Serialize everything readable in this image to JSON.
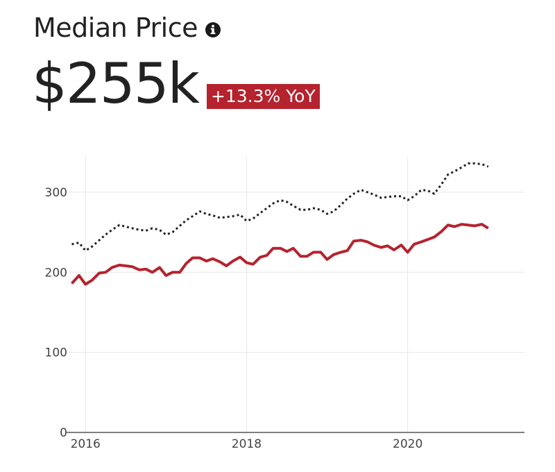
{
  "header": {
    "title": "Median Price",
    "info_icon": "info-circle-icon",
    "value": "$255k",
    "change_badge": "+13.3% YoY"
  },
  "colors": {
    "accent": "#b5232e",
    "compare_line": "#222222",
    "grid": "#e6e6e6",
    "text": "#222222"
  },
  "chart_data": {
    "type": "line",
    "title": "",
    "xlabel": "",
    "ylabel": "",
    "x_range": [
      2015.8,
      2021.45
    ],
    "ylim": [
      0,
      345
    ],
    "x_ticks": [
      2016,
      2018,
      2020
    ],
    "y_ticks": [
      0,
      100,
      200,
      300
    ],
    "grid": true,
    "series": [
      {
        "style": "solid",
        "color": "#b5232e",
        "points": [
          [
            2015.83,
            186
          ],
          [
            2015.92,
            196
          ],
          [
            2016.0,
            185
          ],
          [
            2016.08,
            190
          ],
          [
            2016.17,
            199
          ],
          [
            2016.25,
            200
          ],
          [
            2016.33,
            206
          ],
          [
            2016.42,
            209
          ],
          [
            2016.5,
            208
          ],
          [
            2016.58,
            207
          ],
          [
            2016.67,
            203
          ],
          [
            2016.75,
            204
          ],
          [
            2016.83,
            200
          ],
          [
            2016.92,
            206
          ],
          [
            2017.0,
            196
          ],
          [
            2017.08,
            200
          ],
          [
            2017.17,
            200
          ],
          [
            2017.25,
            211
          ],
          [
            2017.33,
            218
          ],
          [
            2017.42,
            218
          ],
          [
            2017.5,
            214
          ],
          [
            2017.58,
            217
          ],
          [
            2017.67,
            213
          ],
          [
            2017.75,
            208
          ],
          [
            2017.83,
            214
          ],
          [
            2017.92,
            219
          ],
          [
            2018.0,
            212
          ],
          [
            2018.08,
            210
          ],
          [
            2018.17,
            219
          ],
          [
            2018.25,
            221
          ],
          [
            2018.33,
            230
          ],
          [
            2018.42,
            230
          ],
          [
            2018.5,
            226
          ],
          [
            2018.58,
            230
          ],
          [
            2018.67,
            220
          ],
          [
            2018.75,
            220
          ],
          [
            2018.83,
            225
          ],
          [
            2018.92,
            225
          ],
          [
            2019.0,
            216
          ],
          [
            2019.08,
            222
          ],
          [
            2019.17,
            225
          ],
          [
            2019.25,
            227
          ],
          [
            2019.33,
            239
          ],
          [
            2019.42,
            240
          ],
          [
            2019.5,
            238
          ],
          [
            2019.58,
            234
          ],
          [
            2019.67,
            231
          ],
          [
            2019.75,
            233
          ],
          [
            2019.83,
            228
          ],
          [
            2019.92,
            234
          ],
          [
            2020.0,
            225
          ],
          [
            2020.08,
            235
          ],
          [
            2020.17,
            238
          ],
          [
            2020.25,
            241
          ],
          [
            2020.33,
            244
          ],
          [
            2020.42,
            251
          ],
          [
            2020.5,
            259
          ],
          [
            2020.58,
            257
          ],
          [
            2020.67,
            260
          ],
          [
            2020.75,
            259
          ],
          [
            2020.83,
            258
          ],
          [
            2020.92,
            260
          ],
          [
            2021.0,
            255
          ]
        ]
      },
      {
        "style": "dotted",
        "color": "#222222",
        "points": [
          [
            2015.83,
            235
          ],
          [
            2015.92,
            237
          ],
          [
            2016.0,
            227
          ],
          [
            2016.08,
            232
          ],
          [
            2016.17,
            240
          ],
          [
            2016.25,
            247
          ],
          [
            2016.33,
            253
          ],
          [
            2016.42,
            259
          ],
          [
            2016.5,
            257
          ],
          [
            2016.58,
            255
          ],
          [
            2016.67,
            253
          ],
          [
            2016.75,
            252
          ],
          [
            2016.83,
            255
          ],
          [
            2016.92,
            253
          ],
          [
            2017.0,
            247
          ],
          [
            2017.08,
            250
          ],
          [
            2017.17,
            258
          ],
          [
            2017.25,
            265
          ],
          [
            2017.33,
            270
          ],
          [
            2017.42,
            276
          ],
          [
            2017.5,
            273
          ],
          [
            2017.58,
            271
          ],
          [
            2017.67,
            268
          ],
          [
            2017.75,
            269
          ],
          [
            2017.83,
            270
          ],
          [
            2017.92,
            272
          ],
          [
            2018.0,
            264
          ],
          [
            2018.08,
            267
          ],
          [
            2018.17,
            274
          ],
          [
            2018.25,
            280
          ],
          [
            2018.33,
            286
          ],
          [
            2018.42,
            290
          ],
          [
            2018.5,
            288
          ],
          [
            2018.58,
            283
          ],
          [
            2018.67,
            278
          ],
          [
            2018.75,
            278
          ],
          [
            2018.83,
            280
          ],
          [
            2018.92,
            278
          ],
          [
            2019.0,
            273
          ],
          [
            2019.08,
            276
          ],
          [
            2019.17,
            284
          ],
          [
            2019.25,
            292
          ],
          [
            2019.33,
            298
          ],
          [
            2019.42,
            303
          ],
          [
            2019.5,
            300
          ],
          [
            2019.58,
            297
          ],
          [
            2019.67,
            293
          ],
          [
            2019.75,
            294
          ],
          [
            2019.83,
            295
          ],
          [
            2019.92,
            295
          ],
          [
            2020.0,
            290
          ],
          [
            2020.08,
            295
          ],
          [
            2020.17,
            303
          ],
          [
            2020.25,
            302
          ],
          [
            2020.33,
            298
          ],
          [
            2020.42,
            310
          ],
          [
            2020.5,
            322
          ],
          [
            2020.58,
            326
          ],
          [
            2020.67,
            331
          ],
          [
            2020.75,
            336
          ],
          [
            2020.83,
            336
          ],
          [
            2020.92,
            335
          ],
          [
            2021.0,
            332
          ]
        ]
      }
    ]
  }
}
